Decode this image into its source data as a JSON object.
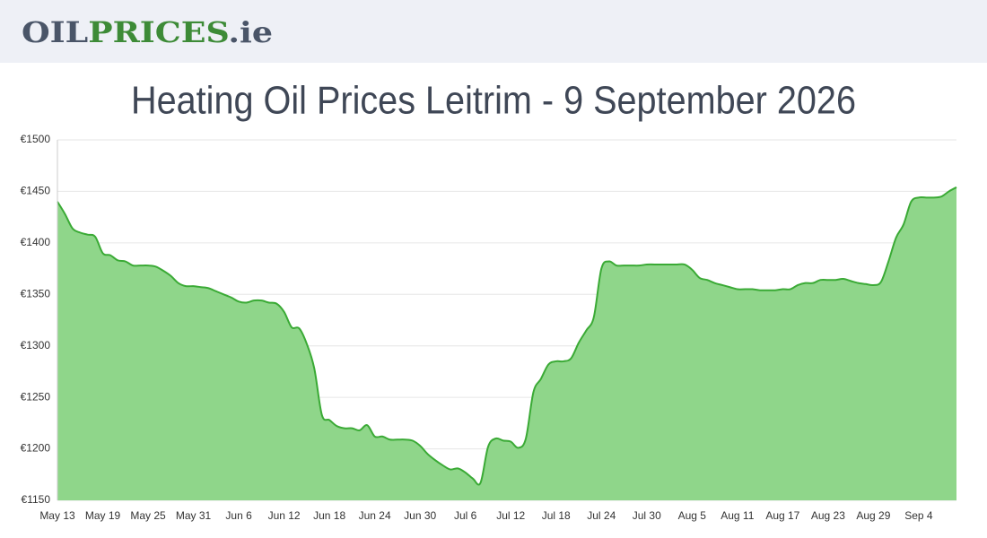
{
  "header": {
    "logo": {
      "part1": "OIL",
      "part2": "PRICES",
      "part3": ".ie"
    }
  },
  "chart_data": {
    "type": "area",
    "title": "Heating Oil Prices Leitrim - 9 September 2026",
    "categories": [
      "May 13",
      null,
      null,
      null,
      null,
      null,
      "May 19",
      null,
      null,
      null,
      null,
      null,
      "May 25",
      null,
      null,
      null,
      null,
      null,
      "May 31",
      null,
      null,
      null,
      null,
      null,
      "Jun 6",
      null,
      null,
      null,
      null,
      null,
      "Jun 12",
      null,
      null,
      null,
      null,
      null,
      "Jun 18",
      null,
      null,
      null,
      null,
      null,
      "Jun 24",
      null,
      null,
      null,
      null,
      null,
      "Jun 30",
      null,
      null,
      null,
      null,
      null,
      "Jul 6",
      null,
      null,
      null,
      null,
      null,
      "Jul 12",
      null,
      null,
      null,
      null,
      null,
      "Jul 18",
      null,
      null,
      null,
      null,
      null,
      "Jul 24",
      null,
      null,
      null,
      null,
      null,
      "Jul 30",
      null,
      null,
      null,
      null,
      null,
      "Aug 5",
      null,
      null,
      null,
      null,
      null,
      "Aug 11",
      null,
      null,
      null,
      null,
      null,
      "Aug 17",
      null,
      null,
      null,
      null,
      null,
      "Aug 23",
      null,
      null,
      null,
      null,
      null,
      "Aug 29",
      null,
      null,
      null,
      null,
      null,
      "Sep 4",
      null,
      null,
      null,
      null,
      null
    ],
    "series": [
      {
        "color": "#3aaa35",
        "fill": "#8fd68a",
        "values": [
          1440,
          1428,
          1414,
          1410,
          1408,
          1406,
          1390,
          1388,
          1383,
          1382,
          1378,
          1378,
          1378,
          1377,
          1373,
          1368,
          1361,
          1358,
          1358,
          1357,
          1356,
          1353,
          1350,
          1347,
          1343,
          1342,
          1344,
          1344,
          1342,
          1341,
          1333,
          1318,
          1317,
          1302,
          1278,
          1233,
          1228,
          1222,
          1220,
          1220,
          1218,
          1223,
          1212,
          1212,
          1209,
          1209,
          1209,
          1208,
          1203,
          1195,
          1189,
          1184,
          1180,
          1181,
          1177,
          1171,
          1167,
          1202,
          1210,
          1208,
          1207,
          1201,
          1210,
          1255,
          1268,
          1282,
          1285,
          1285,
          1288,
          1303,
          1315,
          1328,
          1375,
          1382,
          1378,
          1378,
          1378,
          1378,
          1379,
          1379,
          1379,
          1379,
          1379,
          1379,
          1374,
          1366,
          1364,
          1361,
          1359,
          1357,
          1355,
          1355,
          1355,
          1354,
          1354,
          1354,
          1355,
          1355,
          1359,
          1361,
          1361,
          1364,
          1364,
          1364,
          1365,
          1363,
          1361,
          1360,
          1359,
          1362,
          1382,
          1405,
          1418,
          1440,
          1444,
          1444,
          1444,
          1445,
          1450,
          1454
        ]
      }
    ],
    "ylim": [
      1150,
      1500
    ],
    "yticks": [
      {
        "value": 1150,
        "label": "€1150"
      },
      {
        "value": 1200,
        "label": "€1200"
      },
      {
        "value": 1250,
        "label": "€1250"
      },
      {
        "value": 1300,
        "label": "€1300"
      },
      {
        "value": 1350,
        "label": "€1350"
      },
      {
        "value": 1400,
        "label": "€1400"
      },
      {
        "value": 1450,
        "label": "€1450"
      },
      {
        "value": 1500,
        "label": "€1500"
      }
    ],
    "grid": true
  }
}
